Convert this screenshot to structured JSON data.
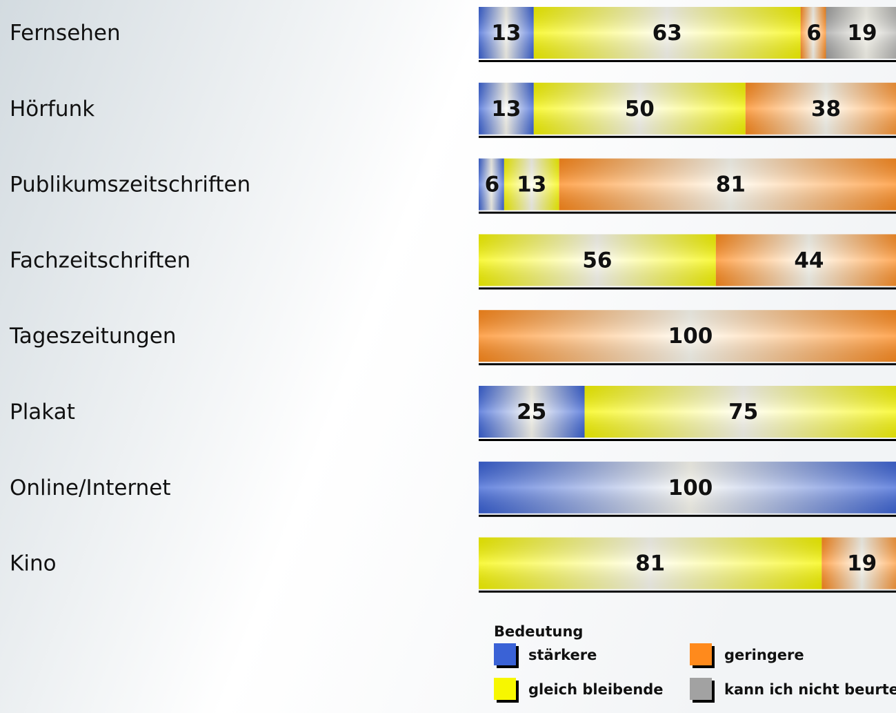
{
  "chart_data": {
    "type": "stacked-bar-horizontal",
    "categories": [
      "Fernsehen",
      "Hörfunk",
      "Publikumszeitschriften",
      "Fachzeitschriften",
      "Tageszeitungen",
      "Plakat",
      "Online/Internet",
      "Kino"
    ],
    "legend_title": "Bedeutung",
    "series": [
      {
        "name": "stärkere",
        "color": "#3a62d6",
        "values": [
          13,
          13,
          6,
          null,
          null,
          25,
          100,
          null
        ]
      },
      {
        "name": "gleich bleibende",
        "color": "#f7f700",
        "values": [
          63,
          50,
          13,
          56,
          null,
          75,
          null,
          81
        ]
      },
      {
        "name": "geringere",
        "color": "#ff8a1c",
        "values": [
          6,
          38,
          81,
          44,
          100,
          null,
          null,
          19
        ]
      },
      {
        "name": "kann ich nicht beurteilen",
        "color": "#a2a2a2",
        "values": [
          19,
          null,
          null,
          null,
          null,
          null,
          null,
          null
        ]
      }
    ]
  }
}
